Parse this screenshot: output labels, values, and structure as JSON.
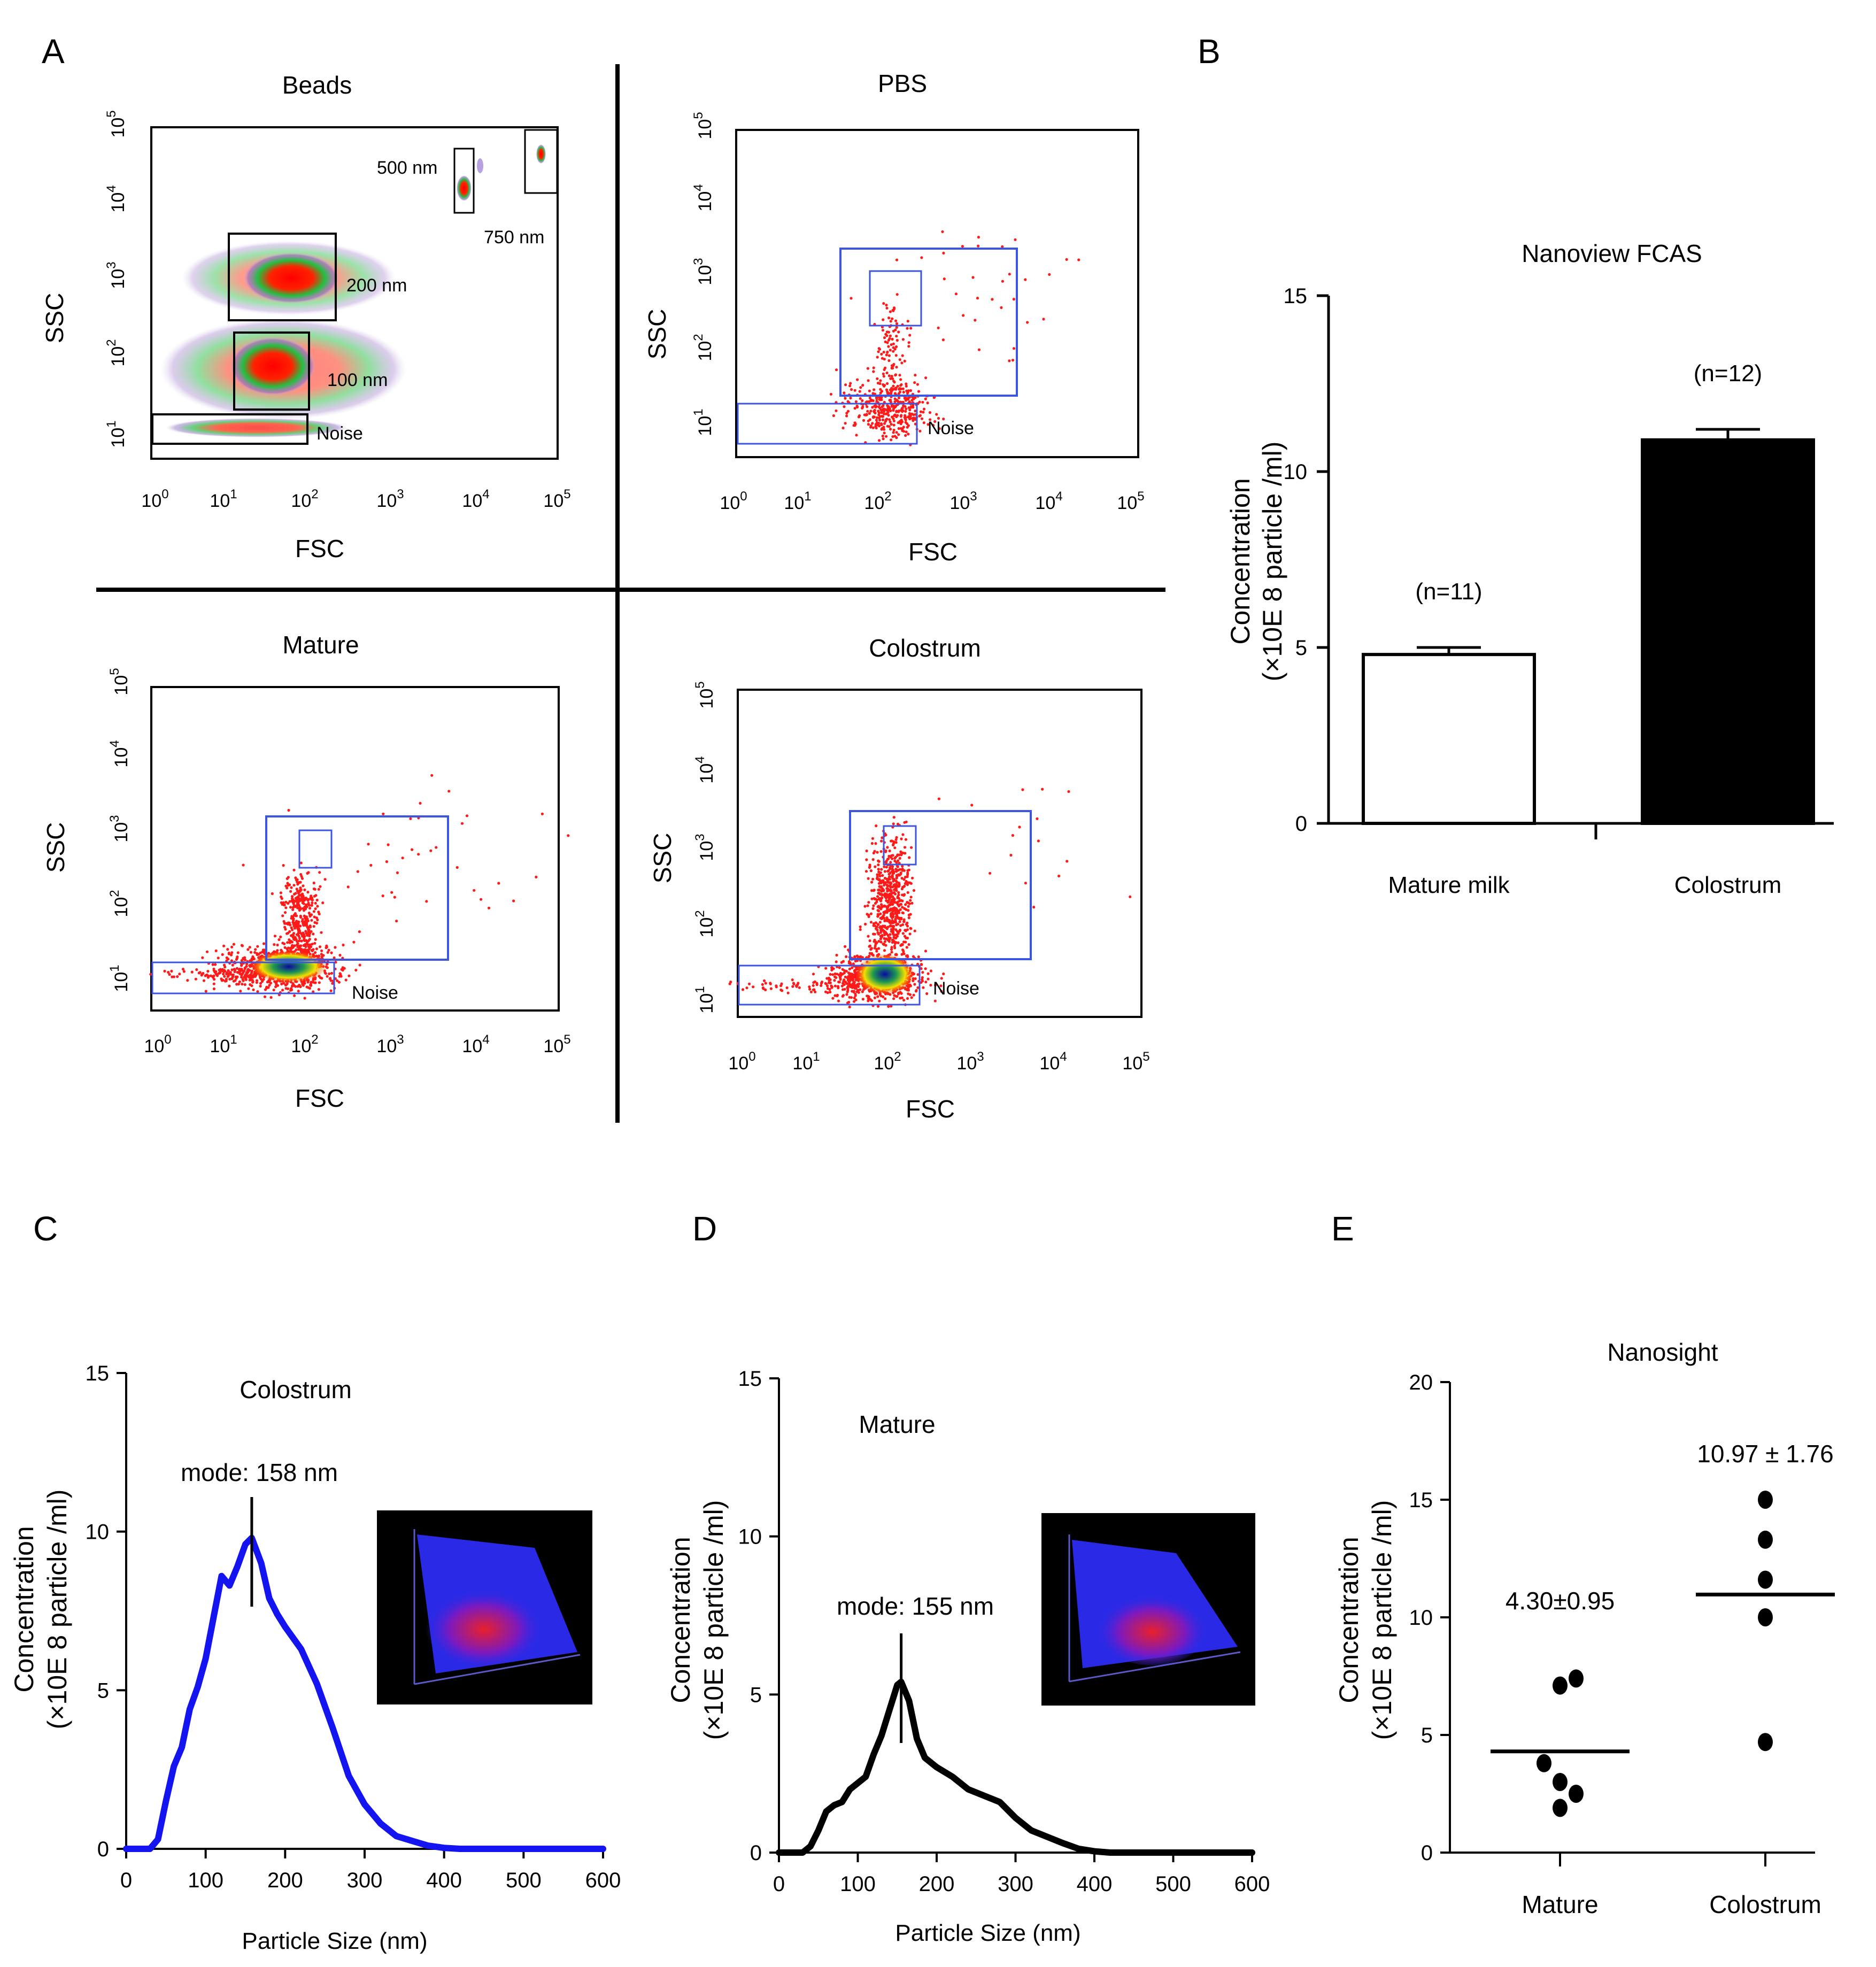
{
  "panel_letters": {
    "a": "A",
    "b": "B",
    "c": "C",
    "d": "D",
    "e": "E"
  },
  "axis_words": {
    "ssc": "SSC",
    "fsc": "FSC"
  },
  "log_tick_labels": [
    "10",
    "10",
    "10",
    "10",
    "10",
    "10"
  ],
  "log_tick_exponents": [
    "0",
    "1",
    "2",
    "3",
    "4",
    "5"
  ],
  "flow_panels": [
    {
      "title": "Beads",
      "gate_labels": {
        "g500": "500 nm",
        "g750": "750 nm",
        "g200": "200 nm",
        "g100": "100 nm",
        "noise": "Noise"
      }
    },
    {
      "title": "PBS",
      "gate_labels": {
        "noise": "Noise"
      }
    },
    {
      "title": "Mature",
      "gate_labels": {
        "noise": "Noise"
      }
    },
    {
      "title": "Colostrum",
      "gate_labels": {
        "noise": "Noise"
      }
    }
  ],
  "colors": {
    "scatter_red": "#ff1a1a",
    "gate_blue": "#4a5bd6",
    "line_blue": "#1414f0",
    "line_black": "#000000",
    "bar_black": "#000000",
    "bar_white": "#ffffff"
  },
  "chart_data": [
    {
      "id": "B",
      "type": "bar",
      "title": "Nanoview FCAS",
      "ylabel": "Concentration",
      "ylabel2": "(×10E 8 particle /ml)",
      "ylim": [
        0,
        15
      ],
      "yticks": [
        0,
        5,
        10,
        15
      ],
      "categories": [
        "Mature milk",
        "Colostrum"
      ],
      "values": [
        4.8,
        10.9
      ],
      "errors": [
        0.2,
        0.3
      ],
      "n_labels": [
        "(n=11)",
        "(n=12)"
      ],
      "bar_fill": [
        "#ffffff",
        "#000000"
      ]
    },
    {
      "id": "C",
      "type": "line",
      "title": "Colostrum",
      "annotation": "mode: 158 nm",
      "mode": 158,
      "xlabel": "Particle Size (nm)",
      "ylabel": "Concentration",
      "ylabel2": "(×10E 8 particle /ml)",
      "xlim": [
        0,
        600
      ],
      "ylim": [
        0,
        15
      ],
      "xticks": [
        0,
        100,
        200,
        300,
        400,
        500,
        600
      ],
      "yticks": [
        0,
        5,
        10,
        15
      ],
      "series": [
        {
          "x": [
            0,
            30,
            40,
            50,
            60,
            70,
            80,
            90,
            100,
            110,
            120,
            130,
            140,
            150,
            158,
            170,
            180,
            190,
            200,
            220,
            240,
            260,
            280,
            300,
            320,
            340,
            360,
            380,
            400,
            420,
            450,
            500,
            600
          ],
          "y": [
            0,
            0,
            0.3,
            1.5,
            2.6,
            3.2,
            4.4,
            5.1,
            6.0,
            7.3,
            8.6,
            8.3,
            8.9,
            9.6,
            9.8,
            9.0,
            7.9,
            7.4,
            7.0,
            6.3,
            5.2,
            3.8,
            2.3,
            1.4,
            0.8,
            0.4,
            0.25,
            0.1,
            0.03,
            0,
            0,
            0,
            0
          ]
        }
      ]
    },
    {
      "id": "D",
      "type": "line",
      "title": "Mature",
      "annotation": "mode: 155 nm",
      "mode": 155,
      "xlabel": "Particle Size (nm)",
      "ylabel": "Concentration",
      "ylabel2": "(×10E 8 particle /ml)",
      "xlim": [
        0,
        600
      ],
      "ylim": [
        0,
        15
      ],
      "xticks": [
        0,
        100,
        200,
        300,
        400,
        500,
        600
      ],
      "yticks": [
        0,
        5,
        10,
        15
      ],
      "series": [
        {
          "x": [
            0,
            30,
            40,
            50,
            60,
            70,
            80,
            90,
            100,
            110,
            120,
            130,
            140,
            150,
            155,
            165,
            175,
            185,
            200,
            220,
            240,
            260,
            280,
            300,
            320,
            340,
            360,
            380,
            400,
            420,
            450,
            500,
            600
          ],
          "y": [
            0,
            0,
            0.2,
            0.7,
            1.3,
            1.5,
            1.6,
            2.0,
            2.2,
            2.4,
            3.1,
            3.7,
            4.5,
            5.3,
            5.4,
            4.8,
            3.6,
            3.0,
            2.7,
            2.4,
            2.0,
            1.8,
            1.6,
            1.1,
            0.7,
            0.5,
            0.3,
            0.12,
            0.04,
            0,
            0,
            0,
            0
          ]
        }
      ]
    },
    {
      "id": "E",
      "type": "scatter",
      "title": "Nanosight",
      "ylabel": "Concentration",
      "ylabel2": "(×10E 8 particle /ml)",
      "ylim": [
        0,
        20
      ],
      "yticks": [
        0,
        5,
        10,
        15,
        20
      ],
      "categories": [
        "Mature",
        "Colostrum"
      ],
      "means": [
        4.3,
        10.97
      ],
      "mean_labels": [
        "4.30±0.95",
        "10.97 ± 1.76"
      ],
      "points": [
        [
          {
            "dx": 0.0,
            "y": 7.1
          },
          {
            "dx": 0.4,
            "y": 7.4
          },
          {
            "dx": -0.4,
            "y": 3.8
          },
          {
            "dx": 0.0,
            "y": 3.0
          },
          {
            "dx": 0.4,
            "y": 2.5
          },
          {
            "dx": 0.0,
            "y": 1.9
          }
        ],
        [
          {
            "dx": 0.0,
            "y": 15.0
          },
          {
            "dx": 0.0,
            "y": 13.3
          },
          {
            "dx": 0.0,
            "y": 11.6
          },
          {
            "dx": 0.0,
            "y": 10.0
          },
          {
            "dx": 0.0,
            "y": 4.7
          }
        ]
      ]
    }
  ]
}
